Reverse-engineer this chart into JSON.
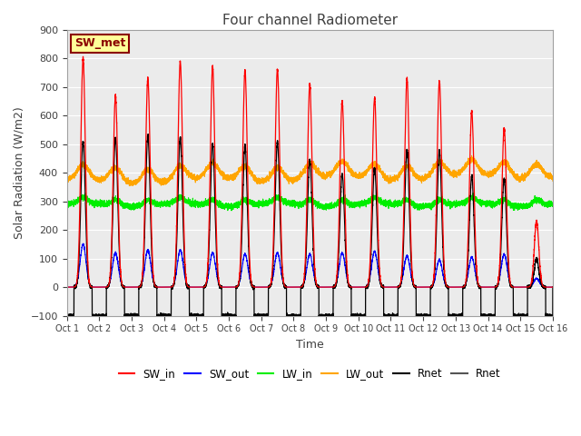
{
  "title": "Four channel Radiometer",
  "xlabel": "Time",
  "ylabel": "Solar Radiation (W/m2)",
  "ylim": [
    -100,
    900
  ],
  "xlim": [
    0,
    15
  ],
  "xtick_labels": [
    "Oct 1",
    "Oct 2",
    "Oct 3",
    "Oct 4",
    "Oct 5",
    "Oct 6",
    "Oct 7",
    "Oct 8",
    "Oct 9",
    "Oct 10",
    "Oct 11",
    "Oct 12",
    "Oct 13",
    "Oct 14",
    "Oct 15",
    "Oct 16"
  ],
  "annotation_text": "SW_met",
  "annotation_color": "#8B0000",
  "annotation_bg": "#FFFF99",
  "plot_bg": "#EBEBEB",
  "legend_entries": [
    "SW_in",
    "SW_out",
    "LW_in",
    "LW_out",
    "Rnet",
    "Rnet"
  ],
  "legend_colors": [
    "#FF0000",
    "#0000FF",
    "#00FF00",
    "#FFA500",
    "#000000",
    "#555555"
  ],
  "num_days": 15,
  "sw_in_peaks": [
    800,
    670,
    730,
    790,
    770,
    760,
    760,
    710,
    650,
    660,
    730,
    720,
    615,
    555,
    230
  ],
  "sw_out_peaks": [
    150,
    120,
    130,
    130,
    120,
    115,
    120,
    115,
    120,
    125,
    110,
    95,
    105,
    115,
    30
  ],
  "lw_in_base": 288,
  "lw_out_base": 368,
  "rnet_peaks": [
    510,
    520,
    530,
    520,
    500,
    495,
    505,
    445,
    395,
    415,
    480,
    475,
    385,
    380,
    100
  ],
  "rnet_night": -100
}
